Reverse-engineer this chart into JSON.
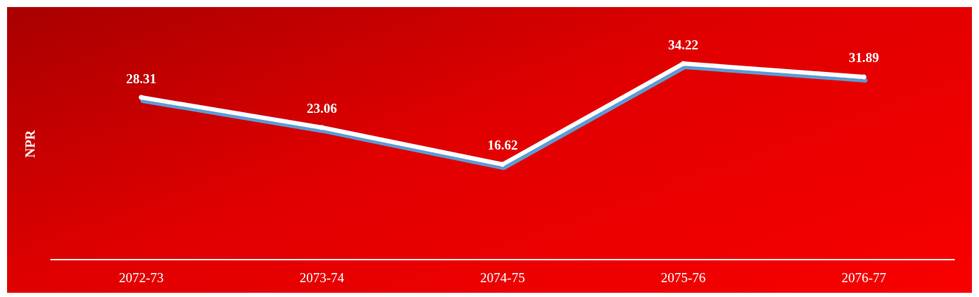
{
  "chart_data": {
    "type": "line",
    "ylabel": "NPR",
    "categories": [
      "2072-73",
      "2073-74",
      "2074-75",
      "2075-76",
      "2076-77"
    ],
    "series": [
      {
        "color": "#ffffff",
        "values": [
          28.31,
          23.06,
          16.62,
          34.22,
          31.89
        ]
      }
    ],
    "data_labels": true,
    "marker": "circle",
    "line_style": "solid"
  }
}
